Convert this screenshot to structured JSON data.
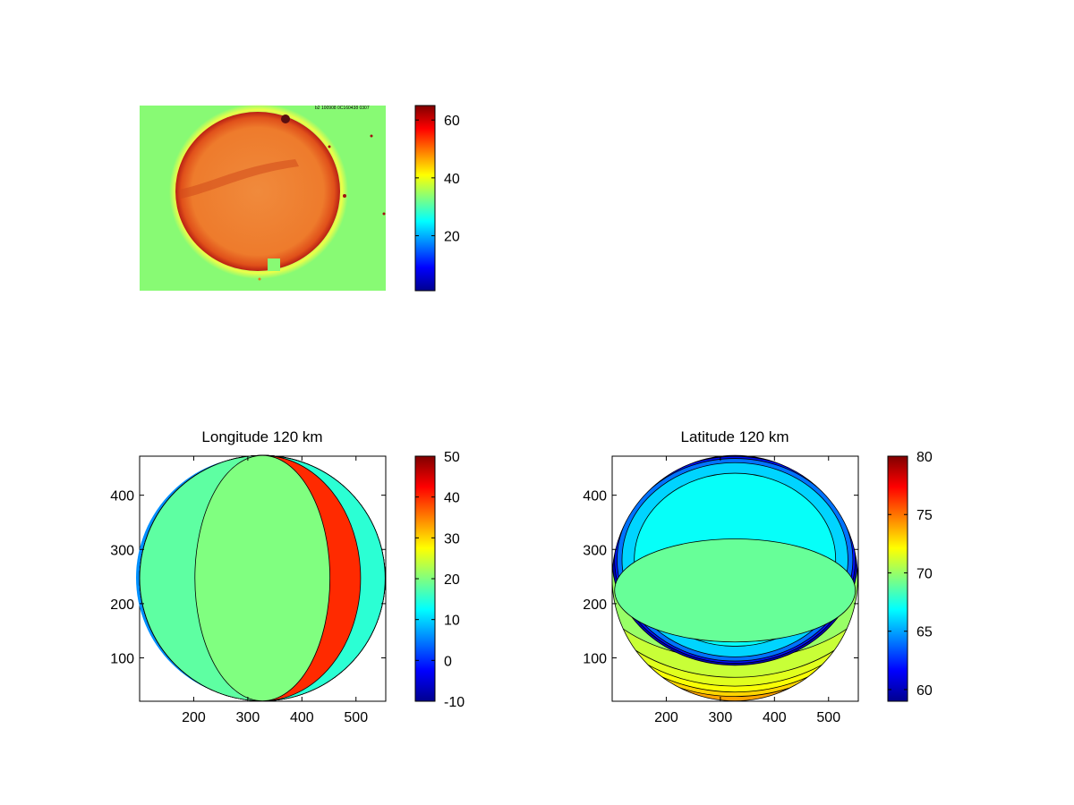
{
  "chart_data": [
    {
      "type": "heatmap",
      "panel": "top-left",
      "title": "",
      "stamp_text": "b2 100908  0C160438  0307",
      "grid": false,
      "axes_visible": false,
      "colorbar": {
        "clim": [
          1,
          65
        ],
        "ticks": [
          20,
          40,
          60
        ],
        "tick_labels": [
          "20",
          "40",
          "60"
        ]
      },
      "content": {
        "background_value": 27,
        "disk_value": 50,
        "disk_rim_value": 60,
        "notch_value": 27
      }
    },
    {
      "type": "heatmap",
      "panel": "bottom-left",
      "title": "Longitude 120 km",
      "xlabel": "",
      "ylabel": "",
      "grid": false,
      "xlim": [
        100,
        555
      ],
      "ylim": [
        20,
        472
      ],
      "xticks": [
        200,
        300,
        400,
        500
      ],
      "yticks": [
        100,
        200,
        300,
        400
      ],
      "colorbar": {
        "clim": [
          -10,
          50
        ],
        "ticks": [
          -10,
          0,
          10,
          20,
          30,
          40,
          50
        ],
        "tick_labels": [
          "-10",
          "0",
          "10",
          "20",
          "30",
          "40",
          "50"
        ]
      },
      "projection_disk": {
        "center": [
          327,
          247
        ],
        "radius_x": 227,
        "radius_y": 227
      },
      "contour_levels": [
        -5,
        0,
        5,
        10,
        15,
        20,
        25,
        30,
        35,
        40
      ]
    },
    {
      "type": "heatmap",
      "panel": "bottom-right",
      "title": "Latitude 120 km",
      "xlabel": "",
      "ylabel": "",
      "grid": false,
      "xlim": [
        100,
        555
      ],
      "ylim": [
        20,
        472
      ],
      "xticks": [
        200,
        300,
        400,
        500
      ],
      "yticks": [
        100,
        200,
        300,
        400
      ],
      "colorbar": {
        "clim": [
          59,
          80
        ],
        "ticks": [
          60,
          65,
          70,
          75,
          80
        ],
        "tick_labels": [
          "60",
          "65",
          "70",
          "75",
          "80"
        ]
      },
      "projection_disk": {
        "center": [
          327,
          247
        ],
        "radius_x": 227,
        "radius_y": 227
      },
      "contour_levels": [
        60,
        61,
        62,
        63,
        64,
        65,
        66,
        67,
        68,
        69,
        70,
        71,
        72,
        73,
        74
      ]
    }
  ]
}
